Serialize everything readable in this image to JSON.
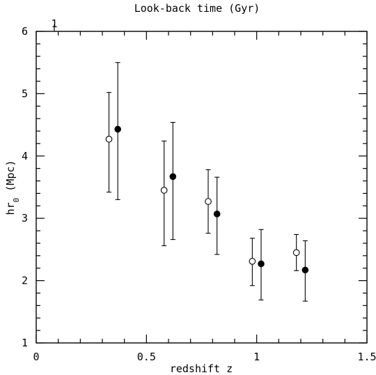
{
  "chart_data": {
    "type": "scatter",
    "title": "Look-back time (Gyr)",
    "xlabel": "redshift z",
    "ylabel_main": "hr",
    "ylabel_sub": "0",
    "ylabel_unit": " (Mpc)",
    "xlim": [
      0,
      1.5
    ],
    "ylim": [
      1,
      6
    ],
    "x_ticks": [
      {
        "value": 0,
        "label": "0"
      },
      {
        "value": 0.5,
        "label": "0.5"
      },
      {
        "value": 1,
        "label": "1"
      },
      {
        "value": 1.5,
        "label": "1.5"
      }
    ],
    "y_ticks": [
      {
        "value": 1,
        "label": "1"
      },
      {
        "value": 2,
        "label": "2"
      },
      {
        "value": 3,
        "label": "3"
      },
      {
        "value": 4,
        "label": "4"
      },
      {
        "value": 5,
        "label": "5"
      },
      {
        "value": 6,
        "label": "6"
      }
    ],
    "top_axis": {
      "ticks": [
        {
          "z": 0.082,
          "label": "1"
        }
      ]
    },
    "series": [
      {
        "marker": "open-circle",
        "points": [
          {
            "x": 0.33,
            "y": 4.27,
            "ylow": 3.42,
            "yhigh": 5.02
          },
          {
            "x": 0.58,
            "y": 3.45,
            "ylow": 2.56,
            "yhigh": 4.24
          },
          {
            "x": 0.78,
            "y": 3.27,
            "ylow": 2.76,
            "yhigh": 3.78
          },
          {
            "x": 0.98,
            "y": 2.31,
            "ylow": 1.92,
            "yhigh": 2.68
          },
          {
            "x": 1.18,
            "y": 2.45,
            "ylow": 2.16,
            "yhigh": 2.74
          }
        ]
      },
      {
        "marker": "filled-circle",
        "points": [
          {
            "x": 0.37,
            "y": 4.43,
            "ylow": 3.3,
            "yhigh": 5.5
          },
          {
            "x": 0.62,
            "y": 3.67,
            "ylow": 2.66,
            "yhigh": 4.54
          },
          {
            "x": 0.82,
            "y": 3.07,
            "ylow": 2.42,
            "yhigh": 3.66
          },
          {
            "x": 1.02,
            "y": 2.27,
            "ylow": 1.69,
            "yhigh": 2.82
          },
          {
            "x": 1.22,
            "y": 2.17,
            "ylow": 1.67,
            "yhigh": 2.64
          }
        ]
      }
    ]
  }
}
